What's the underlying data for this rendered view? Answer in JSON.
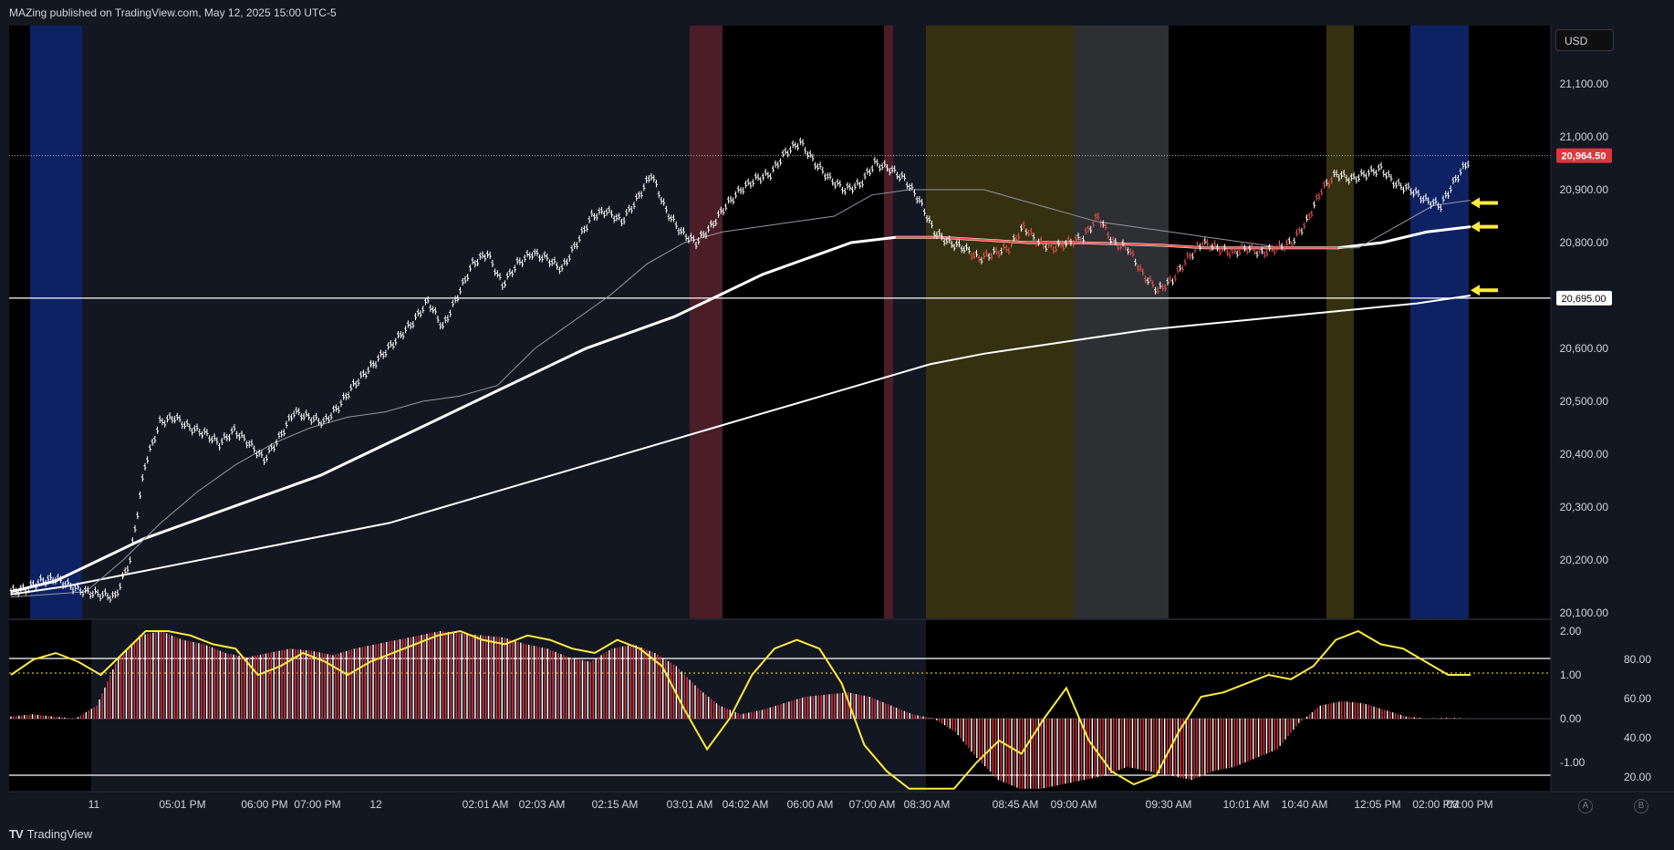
{
  "header": {
    "title": "MAZing published on TradingView.com, May 12, 2025 15:00 UTC-5"
  },
  "footer": {
    "brand": "TradingView",
    "logo": "TV"
  },
  "price_scale": {
    "currency": "USD",
    "ticks": [
      "21,100.00",
      "21,000.00",
      "20,900.00",
      "20,800.00",
      "20,700.00",
      "20,600.00",
      "20,500.00",
      "20,400.00",
      "20,300.00",
      "20,200.00",
      "20,100.00"
    ],
    "current_price_label": "20,964.50",
    "line_price_label": "20,695.00"
  },
  "oscillator_scale": {
    "left_ticks": [
      "2.00",
      "1.00",
      "0.00",
      "-1.00"
    ],
    "right_ticks": [
      "80.00",
      "60.00",
      "40.00",
      "20.00"
    ]
  },
  "time_axis": {
    "labels": [
      "11",
      "05:01 PM",
      "06:00 PM",
      "07:00 PM",
      "12",
      "02:01 AM",
      "02:03 AM",
      "02:15 AM",
      "03:01 AM",
      "04:02 AM",
      "06:00 AM",
      "07:00 AM",
      "08:30 AM",
      "08:45 AM",
      "09:00 AM",
      "09:30 AM",
      "10:01 AM",
      "10:40 AM",
      "12:05 PM",
      "02:00 PM",
      "03:00 PM"
    ]
  },
  "scale_buttons": {
    "auto": "A",
    "log": "B"
  },
  "colors": {
    "background": "#000000",
    "session_dark": "#131722",
    "session_blue": "#0d2163",
    "session_red": "#4a1d27",
    "session_yellow": "#35300f",
    "session_gray": "#2e2f33",
    "candle_white": "#ffffff",
    "candle_red": "#ef5350",
    "current_price_badge": "#e0353b",
    "arrow": "#ffeb3b",
    "oscillator_line": "#ffeb3b",
    "histogram_red": "#e0353b",
    "histogram_white": "#ffffff"
  },
  "chart_data": [
    {
      "type": "line",
      "title": "",
      "price_range": [
        20100,
        21100
      ],
      "current_price": 20964.5,
      "horizontal_level": 20695,
      "series": [
        {
          "values": [
            20140,
            20145,
            20160,
            20165,
            20150,
            20140,
            20135,
            20130,
            20200,
            20380,
            20460,
            20470,
            20450,
            20440,
            20420,
            20445,
            20420,
            20390,
            20430,
            20480,
            20470,
            20460,
            20490,
            20530,
            20560,
            20590,
            20620,
            20650,
            20690,
            20640,
            20700,
            20760,
            20780,
            20720,
            20760,
            20780,
            20770,
            20750,
            20800,
            20850,
            20860,
            20840,
            20880,
            20930,
            20860,
            20820,
            20800,
            20830,
            20870,
            20900,
            20920,
            20930,
            20970,
            20990,
            20950,
            20920,
            20900,
            20910,
            20950,
            20940,
            20920,
            20880,
            20820,
            20800,
            20790,
            20770,
            20780,
            20790,
            20830,
            20800,
            20790,
            20800,
            20810,
            20850,
            20800,
            20790,
            20740,
            20710,
            20730,
            20770,
            20800,
            20790,
            20780,
            20790,
            20780,
            20790,
            20800,
            20840,
            20900,
            20930,
            20920,
            20930,
            20940,
            20910,
            20900,
            20880,
            20870,
            20920,
            20960
          ]
        },
        {
          "values": [
            20130,
            20135,
            20140,
            20200,
            20270,
            20330,
            20380,
            20420,
            20450,
            20470,
            20480,
            20500,
            20510,
            20530,
            20600,
            20650,
            20700,
            20760,
            20800,
            20820,
            20830,
            20840,
            20850,
            20890,
            20900,
            20900,
            20900,
            20880,
            20860,
            20840,
            20830,
            20820,
            20810,
            20800,
            20790,
            20790,
            20790,
            20830,
            20870,
            20880
          ]
        },
        {
          "values": [
            20140,
            20160,
            20200,
            20240,
            20270,
            20300,
            20330,
            20360,
            20400,
            20440,
            20480,
            20520,
            20560,
            20600,
            20630,
            20660,
            20700,
            20740,
            20770,
            20800,
            20810,
            20810,
            20805,
            20800,
            20800,
            20798,
            20795,
            20790,
            20790,
            20790,
            20790,
            20800,
            20820,
            20830
          ]
        },
        {
          "values": [
            20135,
            20150,
            20170,
            20190,
            20210,
            20230,
            20250,
            20270,
            20300,
            20330,
            20360,
            20390,
            20420,
            20450,
            20480,
            20510,
            20540,
            20570,
            20590,
            20605,
            20620,
            20635,
            20645,
            20655,
            20665,
            20675,
            20685,
            20700
          ]
        }
      ]
    },
    {
      "type": "bar",
      "title": "",
      "ylim_left": [
        -1.6,
        2.0
      ],
      "ylim_right": [
        10,
        90
      ],
      "reference_levels": [
        1.1,
        1.0,
        -1.3
      ],
      "series": [
        {
          "values": [
            0.05,
            0.1,
            0.05,
            0.0,
            0.3,
            1.4,
            1.9,
            2.0,
            1.8,
            1.7,
            1.5,
            1.4,
            1.5,
            1.6,
            1.55,
            1.45,
            1.6,
            1.7,
            1.8,
            1.9,
            2.0,
            1.95,
            1.9,
            1.85,
            1.7,
            1.6,
            1.4,
            1.3,
            1.6,
            1.7,
            1.5,
            1.2,
            0.7,
            0.3,
            0.1,
            0.2,
            0.35,
            0.5,
            0.55,
            0.6,
            0.5,
            0.3,
            0.1,
            0.0,
            -0.3,
            -0.9,
            -1.4,
            -1.6,
            -1.6,
            -1.5,
            -1.4,
            -1.3,
            -1.1,
            -1.2,
            -1.3,
            -1.4,
            -1.2,
            -1.1,
            -0.9,
            -0.7,
            -0.1,
            0.3,
            0.4,
            0.35,
            0.2,
            0.05,
            0.0,
            0.02,
            0.0
          ]
        },
        {
          "values": [
            1.0,
            1.35,
            1.5,
            1.3,
            1.0,
            1.5,
            2.0,
            2.0,
            1.9,
            1.7,
            1.6,
            1.0,
            1.2,
            1.5,
            1.3,
            1.0,
            1.3,
            1.5,
            1.7,
            1.9,
            2.0,
            1.8,
            1.7,
            1.9,
            1.8,
            1.6,
            1.5,
            1.8,
            1.6,
            1.2,
            0.2,
            -0.7,
            0.0,
            1.0,
            1.6,
            1.8,
            1.6,
            0.8,
            -0.6,
            -1.2,
            -1.6,
            -1.7,
            -1.6,
            -1.0,
            -0.5,
            -0.8,
            0.0,
            0.7,
            -0.5,
            -1.2,
            -1.5,
            -1.3,
            -0.3,
            0.5,
            0.6,
            0.8,
            1.0,
            0.9,
            1.2,
            1.8,
            2.0,
            1.7,
            1.6,
            1.3,
            1.0,
            1.0
          ]
        }
      ]
    }
  ]
}
